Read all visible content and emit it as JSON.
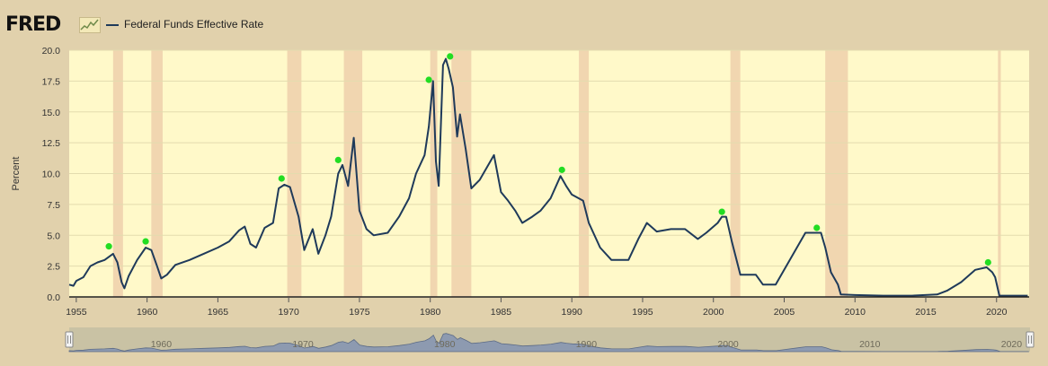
{
  "header": {
    "logo_text": "FRED",
    "logo_icon": "line-chart-icon",
    "series_label": "Federal Funds Effective Rate",
    "series_color": "#1f3a5a"
  },
  "chart_data": {
    "type": "line",
    "title": "",
    "xlabel": "",
    "ylabel": "Percent",
    "xlim": [
      1954.5,
      2022.3
    ],
    "ylim": [
      0,
      20
    ],
    "yticks": [
      "0.0",
      "2.5",
      "5.0",
      "7.5",
      "10.0",
      "12.5",
      "15.0",
      "17.5",
      "20.0"
    ],
    "xticks": [
      "1955",
      "1960",
      "1965",
      "1970",
      "1975",
      "1980",
      "1985",
      "1990",
      "1995",
      "2000",
      "2005",
      "2010",
      "2015",
      "2020"
    ],
    "grid": "horizontal",
    "colors": {
      "plot_bg": "#fff9c9",
      "recession": "#f1d6b0",
      "line": "#1f3a5a",
      "marker": "#22dd22"
    },
    "recessions": [
      [
        1957.6,
        1958.3
      ],
      [
        1960.3,
        1961.1
      ],
      [
        1969.9,
        1970.9
      ],
      [
        1973.9,
        1975.2
      ],
      [
        1980.0,
        1980.5
      ],
      [
        1981.5,
        1982.9
      ],
      [
        1990.5,
        1991.2
      ],
      [
        2001.2,
        2001.9
      ],
      [
        2007.9,
        2009.5
      ],
      [
        2020.1,
        2020.3
      ]
    ],
    "series": [
      {
        "values": [
          [
            1954.5,
            1.0
          ],
          [
            1954.8,
            0.9
          ],
          [
            1955.0,
            1.3
          ],
          [
            1955.5,
            1.6
          ],
          [
            1956.0,
            2.5
          ],
          [
            1956.5,
            2.8
          ],
          [
            1957.0,
            3.0
          ],
          [
            1957.6,
            3.5
          ],
          [
            1957.9,
            2.8
          ],
          [
            1958.2,
            1.2
          ],
          [
            1958.4,
            0.7
          ],
          [
            1958.7,
            1.7
          ],
          [
            1959.3,
            3.0
          ],
          [
            1959.9,
            4.0
          ],
          [
            1960.3,
            3.8
          ],
          [
            1960.7,
            2.5
          ],
          [
            1961.0,
            1.5
          ],
          [
            1961.4,
            1.8
          ],
          [
            1962.0,
            2.6
          ],
          [
            1963.0,
            3.0
          ],
          [
            1964.0,
            3.5
          ],
          [
            1965.0,
            4.0
          ],
          [
            1965.8,
            4.5
          ],
          [
            1966.5,
            5.4
          ],
          [
            1966.9,
            5.7
          ],
          [
            1967.3,
            4.3
          ],
          [
            1967.7,
            4.0
          ],
          [
            1968.3,
            5.6
          ],
          [
            1968.9,
            6.0
          ],
          [
            1969.3,
            8.8
          ],
          [
            1969.7,
            9.1
          ],
          [
            1970.1,
            8.9
          ],
          [
            1970.7,
            6.5
          ],
          [
            1971.1,
            3.8
          ],
          [
            1971.7,
            5.5
          ],
          [
            1972.1,
            3.5
          ],
          [
            1972.6,
            5.0
          ],
          [
            1973.0,
            6.5
          ],
          [
            1973.5,
            10.0
          ],
          [
            1973.8,
            10.7
          ],
          [
            1974.2,
            9.0
          ],
          [
            1974.6,
            12.9
          ],
          [
            1975.0,
            7.0
          ],
          [
            1975.5,
            5.5
          ],
          [
            1976.0,
            5.0
          ],
          [
            1977.0,
            5.2
          ],
          [
            1977.8,
            6.5
          ],
          [
            1978.5,
            8.0
          ],
          [
            1979.0,
            10.0
          ],
          [
            1979.6,
            11.5
          ],
          [
            1979.9,
            13.8
          ],
          [
            1980.2,
            17.5
          ],
          [
            1980.4,
            11.0
          ],
          [
            1980.6,
            9.0
          ],
          [
            1980.9,
            18.8
          ],
          [
            1981.1,
            19.3
          ],
          [
            1981.3,
            18.5
          ],
          [
            1981.6,
            17.0
          ],
          [
            1981.9,
            13.0
          ],
          [
            1982.1,
            14.8
          ],
          [
            1982.5,
            12.0
          ],
          [
            1982.9,
            8.8
          ],
          [
            1983.5,
            9.5
          ],
          [
            1984.5,
            11.5
          ],
          [
            1985.0,
            8.5
          ],
          [
            1985.5,
            7.8
          ],
          [
            1986.0,
            7.0
          ],
          [
            1986.5,
            6.0
          ],
          [
            1987.2,
            6.5
          ],
          [
            1987.8,
            7.0
          ],
          [
            1988.5,
            8.0
          ],
          [
            1989.2,
            9.8
          ],
          [
            1989.6,
            9.0
          ],
          [
            1990.0,
            8.3
          ],
          [
            1990.8,
            7.8
          ],
          [
            1991.2,
            6.0
          ],
          [
            1992.0,
            4.0
          ],
          [
            1992.8,
            3.0
          ],
          [
            1994.0,
            3.0
          ],
          [
            1994.7,
            4.7
          ],
          [
            1995.3,
            6.0
          ],
          [
            1996.0,
            5.3
          ],
          [
            1997.0,
            5.5
          ],
          [
            1998.0,
            5.5
          ],
          [
            1998.9,
            4.7
          ],
          [
            1999.5,
            5.2
          ],
          [
            2000.3,
            6.0
          ],
          [
            2000.6,
            6.5
          ],
          [
            2000.9,
            6.5
          ],
          [
            2001.3,
            4.5
          ],
          [
            2001.9,
            1.8
          ],
          [
            2003.0,
            1.8
          ],
          [
            2003.5,
            1.0
          ],
          [
            2004.4,
            1.0
          ],
          [
            2006.5,
            5.2
          ],
          [
            2007.6,
            5.2
          ],
          [
            2007.9,
            4.0
          ],
          [
            2008.3,
            2.0
          ],
          [
            2008.8,
            1.0
          ],
          [
            2009.0,
            0.2
          ],
          [
            2010.0,
            0.15
          ],
          [
            2012.0,
            0.1
          ],
          [
            2014.0,
            0.1
          ],
          [
            2015.8,
            0.2
          ],
          [
            2016.5,
            0.5
          ],
          [
            2017.5,
            1.2
          ],
          [
            2018.5,
            2.2
          ],
          [
            2019.3,
            2.4
          ],
          [
            2019.7,
            2.0
          ],
          [
            2019.9,
            1.6
          ],
          [
            2020.2,
            0.1
          ],
          [
            2022.2,
            0.1
          ]
        ]
      }
    ],
    "markers": [
      [
        1957.3,
        4.1
      ],
      [
        1959.9,
        4.5
      ],
      [
        1969.5,
        9.6
      ],
      [
        1973.5,
        11.1
      ],
      [
        1979.9,
        17.6
      ],
      [
        1981.4,
        19.5
      ],
      [
        1989.3,
        10.3
      ],
      [
        2000.6,
        6.9
      ],
      [
        2007.3,
        5.6
      ],
      [
        2019.4,
        2.8
      ]
    ],
    "navigator": {
      "xlabels": [
        "1960",
        "1970",
        "1980",
        "1990",
        "2000",
        "2010",
        "2020"
      ],
      "handle_icon": "range-handle-icon"
    }
  }
}
